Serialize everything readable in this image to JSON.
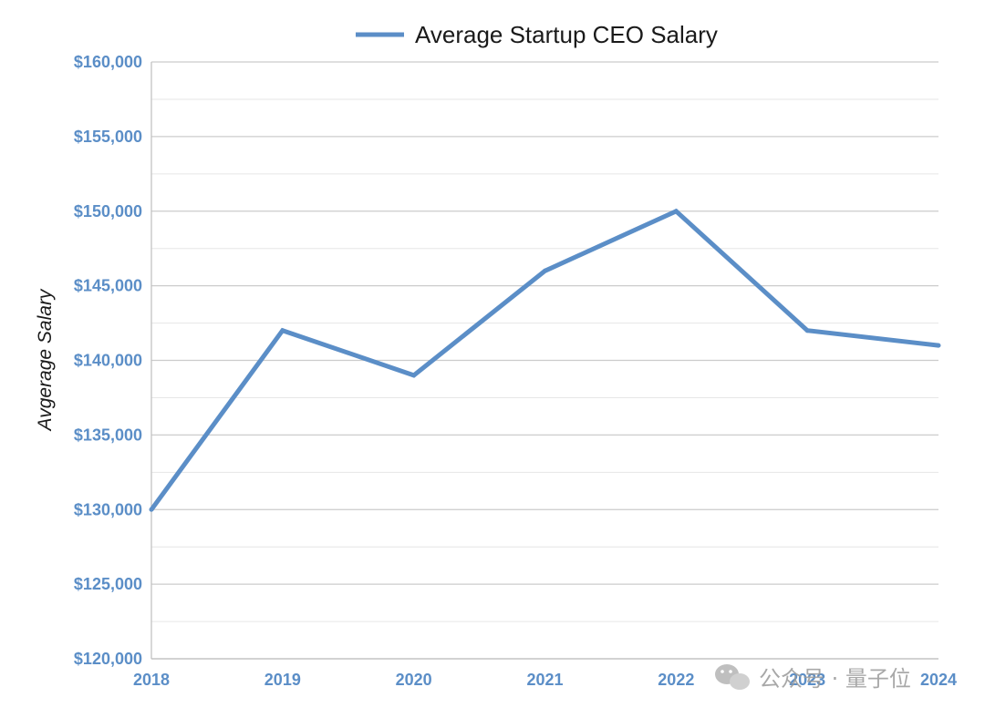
{
  "chart_data": {
    "type": "line",
    "categories": [
      "2018",
      "2019",
      "2020",
      "2021",
      "2022",
      "2023",
      "2024"
    ],
    "series": [
      {
        "name": "Average Startup CEO Salary",
        "values": [
          130000,
          142000,
          139000,
          146000,
          150000,
          142000,
          141000
        ]
      }
    ],
    "title": "",
    "xlabel": "",
    "ylabel": "Avgerage Salary",
    "ylim": [
      120000,
      160000
    ],
    "yticks": [
      120000,
      125000,
      130000,
      135000,
      140000,
      145000,
      150000,
      155000,
      160000
    ],
    "ytick_labels": [
      "$120,000",
      "$125,000",
      "$130,000",
      "$135,000",
      "$140,000",
      "$145,000",
      "$150,000",
      "$155,000",
      "$160,000"
    ],
    "grid": true,
    "legend": "top-center",
    "colors": {
      "line": "#5b8ec7",
      "tick_labels": "#5b8ec7",
      "grid": "#cccccc"
    }
  },
  "watermark": {
    "icon": "wechat-icon",
    "text": "公众号 · 量子位"
  }
}
